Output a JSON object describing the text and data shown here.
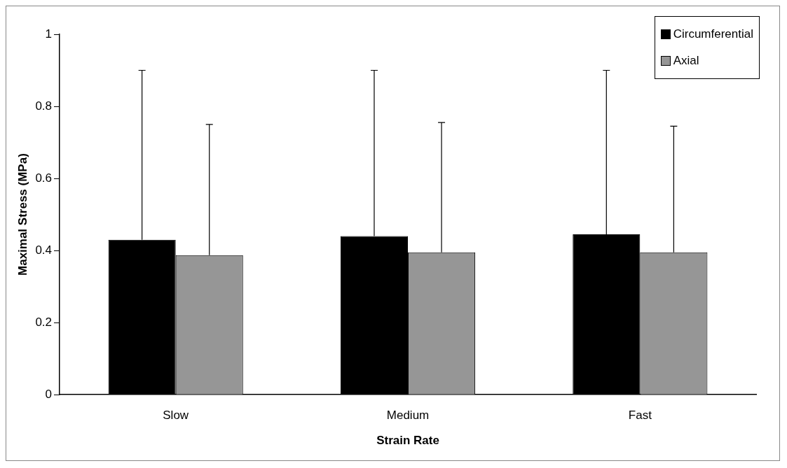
{
  "chart_data": {
    "type": "bar",
    "xlabel": "Strain Rate",
    "ylabel": "Maximal Stress (MPa)",
    "categories": [
      "Slow",
      "Medium",
      "Fast"
    ],
    "series": [
      {
        "name": "Circumferential",
        "color": "#000000",
        "values": [
          0.43,
          0.44,
          0.445
        ],
        "errors": [
          [
            0.43,
            0.9
          ],
          [
            0.44,
            0.9
          ],
          [
            0.445,
            0.9
          ]
        ]
      },
      {
        "name": "Axial",
        "color": "#969696",
        "values": [
          0.387,
          0.395,
          0.395
        ],
        "errors": [
          [
            0.387,
            0.75
          ],
          [
            0.395,
            0.755
          ],
          [
            0.395,
            0.745
          ]
        ]
      }
    ],
    "ylim": [
      0,
      1
    ],
    "yticks": [
      0,
      0.2,
      0.4,
      0.6,
      0.8,
      1
    ],
    "grid": false,
    "legend": "top right"
  }
}
